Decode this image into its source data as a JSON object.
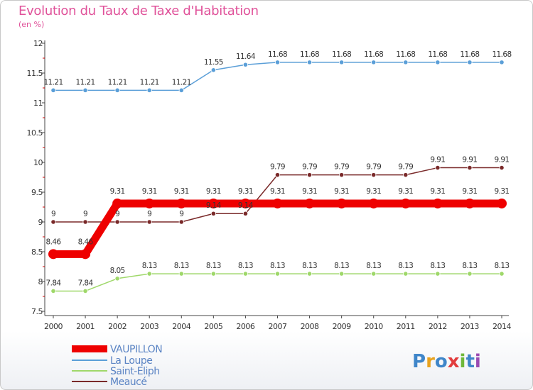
{
  "chart_data": {
    "type": "line",
    "title": "Evolution du Taux de Taxe d'Habitation",
    "subtitle": "(en %)",
    "x": [
      "2000",
      "2001",
      "2002",
      "2003",
      "2004",
      "2005",
      "2006",
      "2007",
      "2008",
      "2009",
      "2010",
      "2011",
      "2012",
      "2013",
      "2014"
    ],
    "ylim": [
      7.5,
      12
    ],
    "yticks": [
      "7.5",
      "8",
      "8.5",
      "9",
      "9.5",
      "10",
      "10.5",
      "11",
      "11.5",
      "12"
    ],
    "grid": false,
    "series": [
      {
        "name": "VAUPILLON",
        "color": "#ee0000",
        "values": [
          8.46,
          8.46,
          9.31,
          9.31,
          9.31,
          9.31,
          9.31,
          9.31,
          9.31,
          9.31,
          9.31,
          9.31,
          9.31,
          9.31,
          9.31
        ],
        "labels": [
          "8.46",
          "8.46",
          "9.31",
          "9.31",
          "9.31",
          "9.31",
          "9.31",
          "9.31",
          "9.31",
          "9.31",
          "9.31",
          "9.31",
          "9.31",
          "9.31",
          "9.31"
        ]
      },
      {
        "name": "La Loupe",
        "color": "#5b9fd8",
        "values": [
          11.21,
          11.21,
          11.21,
          11.21,
          11.21,
          11.55,
          11.64,
          11.68,
          11.68,
          11.68,
          11.68,
          11.68,
          11.68,
          11.68,
          11.68
        ],
        "labels": [
          "11.21",
          "11.21",
          "11.21",
          "11.21",
          "11.21",
          "11.55",
          "11.64",
          "11.68",
          "11.68",
          "11.68",
          "11.68",
          "11.68",
          "11.68",
          "11.68",
          "11.68"
        ]
      },
      {
        "name": "Saint-Eliph",
        "color": "#9fd86a",
        "values": [
          7.84,
          7.84,
          8.05,
          8.13,
          8.13,
          8.13,
          8.13,
          8.13,
          8.13,
          8.13,
          8.13,
          8.13,
          8.13,
          8.13,
          8.13
        ],
        "labels": [
          "7.84",
          "7.84",
          "8.05",
          "8.13",
          "8.13",
          "8.13",
          "8.13",
          "8.13",
          "8.13",
          "8.13",
          "8.13",
          "8.13",
          "8.13",
          "8.13",
          "8.13"
        ]
      },
      {
        "name": "Meaucé",
        "color": "#7a2a2a",
        "values": [
          9,
          9,
          9,
          9,
          9,
          9.14,
          9.14,
          9.79,
          9.79,
          9.79,
          9.79,
          9.79,
          9.91,
          9.91,
          9.91
        ],
        "labels": [
          "9",
          "9",
          "9",
          "9",
          "9",
          "9.14",
          "9.14",
          "9.79",
          "9.79",
          "9.79",
          "9.79",
          "9.79",
          "9.91",
          "9.91",
          "9.91"
        ]
      }
    ],
    "legend_position": "bottom-left"
  },
  "brand": {
    "text": "Proxiti"
  }
}
